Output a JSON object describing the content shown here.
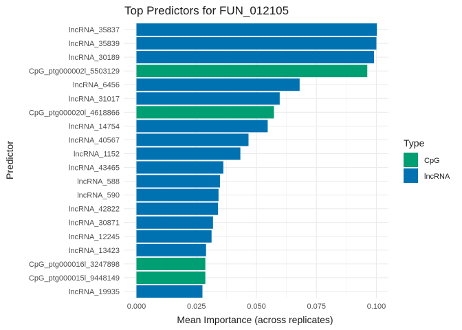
{
  "chart_data": {
    "type": "bar",
    "orientation": "horizontal",
    "title": "Top Predictors for FUN_012105",
    "xlabel": "Mean Importance (across replicates)",
    "ylabel": "Predictor",
    "xlim": [
      0,
      0.1
    ],
    "x_ticks": [
      "0.000",
      "0.025",
      "0.050",
      "0.075",
      "0.100"
    ],
    "grid": true,
    "legend": {
      "title": "Type",
      "placement": "right",
      "entries": [
        {
          "name": "CpG",
          "color": "#009E73"
        },
        {
          "name": "lncRNA",
          "color": "#0072B2"
        }
      ]
    },
    "bars": [
      {
        "label": "lncRNA_35837",
        "value": 0.1002,
        "type": "lncRNA"
      },
      {
        "label": "lncRNA_35839",
        "value": 0.1,
        "type": "lncRNA"
      },
      {
        "label": "lncRNA_30189",
        "value": 0.099,
        "type": "lncRNA"
      },
      {
        "label": "CpG_ptg000002l_5503129",
        "value": 0.0962,
        "type": "CpG"
      },
      {
        "label": "lncRNA_6456",
        "value": 0.068,
        "type": "lncRNA"
      },
      {
        "label": "lncRNA_31017",
        "value": 0.0597,
        "type": "lncRNA"
      },
      {
        "label": "CpG_ptg000020l_4618866",
        "value": 0.0573,
        "type": "CpG"
      },
      {
        "label": "lncRNA_14754",
        "value": 0.0547,
        "type": "lncRNA"
      },
      {
        "label": "lncRNA_40567",
        "value": 0.0467,
        "type": "lncRNA"
      },
      {
        "label": "lncRNA_1152",
        "value": 0.0433,
        "type": "lncRNA"
      },
      {
        "label": "lncRNA_43465",
        "value": 0.0362,
        "type": "lncRNA"
      },
      {
        "label": "lncRNA_588",
        "value": 0.0348,
        "type": "lncRNA"
      },
      {
        "label": "lncRNA_590",
        "value": 0.0342,
        "type": "lncRNA"
      },
      {
        "label": "lncRNA_42822",
        "value": 0.034,
        "type": "lncRNA"
      },
      {
        "label": "lncRNA_30871",
        "value": 0.0319,
        "type": "lncRNA"
      },
      {
        "label": "lncRNA_12245",
        "value": 0.0313,
        "type": "lncRNA"
      },
      {
        "label": "lncRNA_13423",
        "value": 0.029,
        "type": "lncRNA"
      },
      {
        "label": "CpG_ptg000016l_3247898",
        "value": 0.0287,
        "type": "CpG"
      },
      {
        "label": "CpG_ptg000015l_9448149",
        "value": 0.0287,
        "type": "CpG"
      },
      {
        "label": "lncRNA_19935",
        "value": 0.0275,
        "type": "lncRNA"
      }
    ]
  }
}
